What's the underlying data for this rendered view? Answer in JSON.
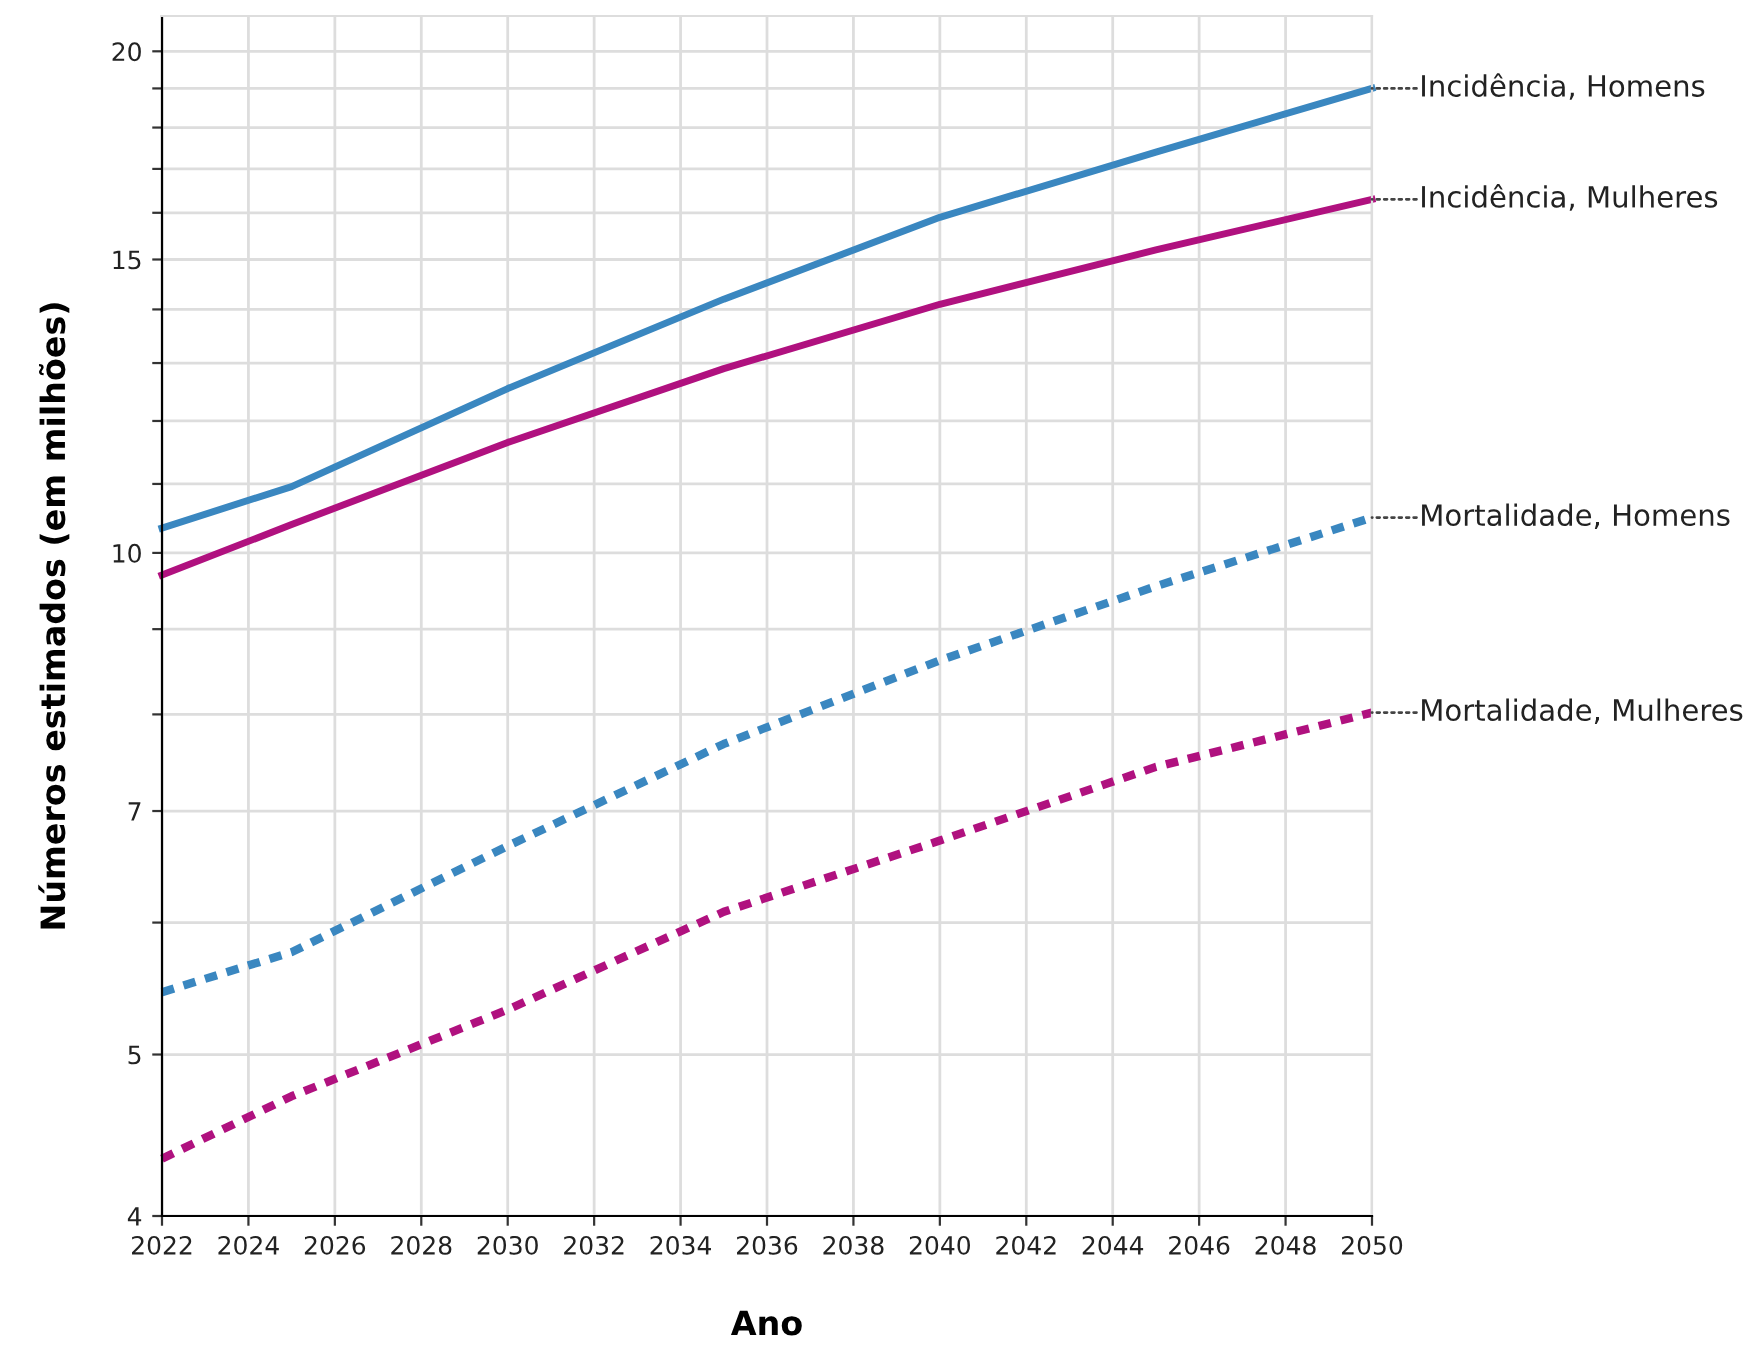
{
  "chart_data": {
    "type": "line",
    "xlabel": "Ano",
    "ylabel": "Números estimados (em milhões)",
    "x": [
      2022,
      2025,
      2030,
      2035,
      2040,
      2045,
      2050
    ],
    "series": [
      {
        "name": "Incidência, Homens",
        "color": "#3a87c0",
        "line_style": "solid",
        "values": [
          10.35,
          10.96,
          12.55,
          14.2,
          15.9,
          17.4,
          19.0
        ]
      },
      {
        "name": "Incidência, Mulheres",
        "color": "#b0117f",
        "line_style": "solid",
        "values": [
          9.7,
          10.4,
          11.65,
          12.9,
          14.1,
          15.2,
          16.3
        ]
      },
      {
        "name": "Mortalidade, Homens",
        "color": "#3a87c0",
        "line_style": "dotted",
        "values": [
          5.45,
          5.76,
          6.67,
          7.68,
          8.62,
          9.55,
          10.5
        ]
      },
      {
        "name": "Mortalidade, Mulheres",
        "color": "#b0117f",
        "line_style": "dotted",
        "values": [
          4.33,
          4.72,
          5.32,
          6.09,
          6.72,
          7.44,
          8.02
        ]
      }
    ],
    "log": "y",
    "xlim": [
      2022,
      2050
    ],
    "ylim": [
      4,
      21
    ],
    "xticks": [
      2022,
      2024,
      2026,
      2028,
      2030,
      2032,
      2034,
      2036,
      2038,
      2040,
      2042,
      2044,
      2046,
      2048,
      2050
    ],
    "yticks": [
      4,
      5,
      {
        "value": 6,
        "label": null
      },
      7,
      {
        "value": 8,
        "label": null
      },
      {
        "value": 9,
        "label": null
      },
      10,
      {
        "value": 11,
        "label": null
      },
      {
        "value": 12,
        "label": null
      },
      {
        "value": 13,
        "label": null
      },
      {
        "value": 14,
        "label": null
      },
      15,
      {
        "value": 16,
        "label": null
      },
      {
        "value": 17,
        "label": null
      },
      {
        "value": 18,
        "label": null
      },
      {
        "value": 19,
        "label": null
      },
      20
    ],
    "grid": true,
    "legend": false,
    "marker": "none"
  }
}
